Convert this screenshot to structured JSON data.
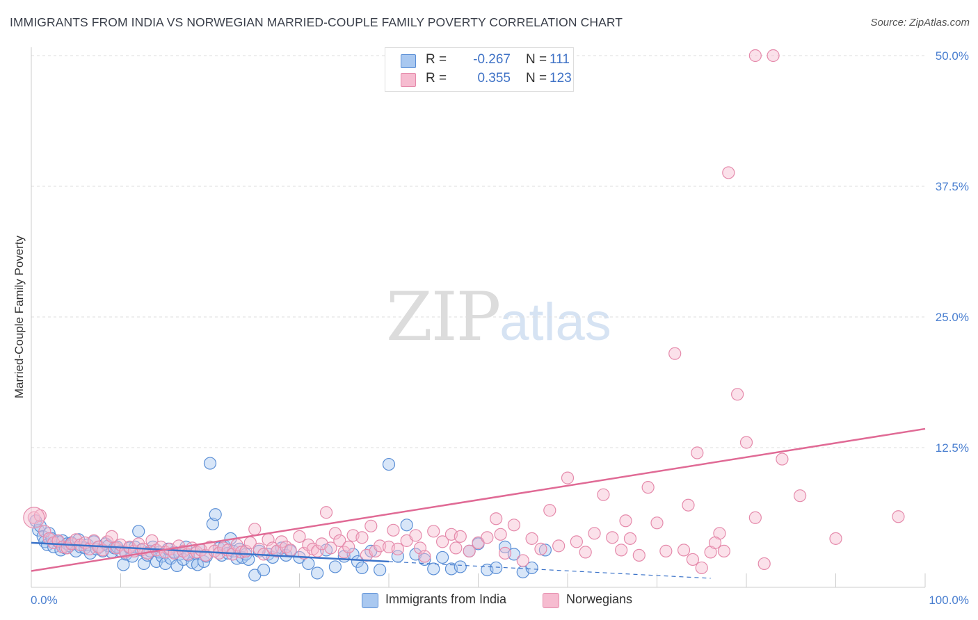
{
  "title": "IMMIGRANTS FROM INDIA VS NORWEGIAN MARRIED-COUPLE FAMILY POVERTY CORRELATION CHART",
  "source": "Source: ZipAtlas.com",
  "watermark": {
    "zip": "ZIP",
    "atlas": "atlas"
  },
  "colors": {
    "blue_fill": "#a9c8f0",
    "blue_stroke": "#5b8fd6",
    "blue_line": "#3b73c9",
    "pink_fill": "#f6bcd0",
    "pink_stroke": "#e58aab",
    "pink_line": "#e06a95",
    "tick_label": "#4a7fd0",
    "grid": "#dddddd"
  },
  "legend": {
    "series1": {
      "r_label": "R =",
      "r_value": "-0.267",
      "n_label": "N =",
      "n_value": "111"
    },
    "series2": {
      "r_label": "R =",
      "r_value": "0.355",
      "n_label": "N =",
      "n_value": "123"
    }
  },
  "chart_data": {
    "type": "scatter",
    "title": "IMMIGRANTS FROM INDIA VS NORWEGIAN MARRIED-COUPLE FAMILY POVERTY CORRELATION CHART",
    "xlabel": "",
    "ylabel": "Married-Couple Family Poverty",
    "xlim": [
      0,
      100
    ],
    "ylim": [
      0,
      50
    ],
    "x_tick_labels": [
      "0.0%",
      "100.0%"
    ],
    "y_ticks": [
      12.5,
      25.0,
      37.5,
      50.0
    ],
    "y_tick_labels": [
      "12.5%",
      "25.0%",
      "37.5%",
      "50.0%"
    ],
    "grid": true,
    "legend_position": "bottom",
    "series": [
      {
        "name": "Immigrants from India",
        "trend": {
          "x0": 0,
          "y0": 3.4,
          "x1": 40,
          "y1": 1.6,
          "dashed_to_x": 76,
          "dashed_to_y": 0
        },
        "points": [
          [
            0.5,
            5.5
          ],
          [
            0.8,
            4.6
          ],
          [
            1.0,
            5.0
          ],
          [
            1.3,
            4.0
          ],
          [
            1.5,
            3.5
          ],
          [
            1.8,
            3.2
          ],
          [
            2.0,
            4.3
          ],
          [
            2.3,
            3.8
          ],
          [
            2.5,
            3.0
          ],
          [
            3.0,
            3.5
          ],
          [
            3.3,
            2.7
          ],
          [
            3.5,
            3.6
          ],
          [
            3.8,
            2.9
          ],
          [
            4.0,
            3.3
          ],
          [
            4.3,
            3.1
          ],
          [
            4.5,
            3.4
          ],
          [
            5.0,
            2.6
          ],
          [
            5.3,
            3.7
          ],
          [
            5.5,
            3.0
          ],
          [
            6.0,
            2.9
          ],
          [
            6.3,
            3.2
          ],
          [
            6.6,
            2.4
          ],
          [
            7.0,
            3.5
          ],
          [
            7.3,
            2.8
          ],
          [
            7.6,
            3.0
          ],
          [
            8.0,
            2.6
          ],
          [
            8.3,
            3.3
          ],
          [
            8.6,
            3.1
          ],
          [
            9.0,
            2.5
          ],
          [
            9.3,
            2.9
          ],
          [
            9.6,
            3.0
          ],
          [
            10.0,
            2.6
          ],
          [
            10.3,
            1.3
          ],
          [
            10.6,
            2.3
          ],
          [
            11.0,
            2.9
          ],
          [
            11.3,
            2.1
          ],
          [
            11.6,
            3.0
          ],
          [
            12.0,
            4.5
          ],
          [
            12.3,
            2.7
          ],
          [
            12.6,
            1.4
          ],
          [
            13.0,
            2.2
          ],
          [
            13.3,
            2.6
          ],
          [
            13.6,
            3.0
          ],
          [
            14.0,
            1.6
          ],
          [
            14.3,
            2.5
          ],
          [
            14.6,
            2.1
          ],
          [
            15.0,
            1.4
          ],
          [
            15.3,
            2.8
          ],
          [
            15.6,
            1.9
          ],
          [
            16.0,
            2.5
          ],
          [
            16.3,
            1.2
          ],
          [
            16.6,
            2.3
          ],
          [
            17.0,
            1.8
          ],
          [
            17.3,
            3.0
          ],
          [
            17.6,
            2.2
          ],
          [
            18.0,
            1.5
          ],
          [
            18.3,
            2.4
          ],
          [
            18.6,
            1.3
          ],
          [
            19.0,
            2.7
          ],
          [
            19.3,
            1.6
          ],
          [
            19.6,
            2.1
          ],
          [
            20.0,
            11.0
          ],
          [
            20.3,
            5.2
          ],
          [
            20.6,
            6.1
          ],
          [
            21.0,
            2.9
          ],
          [
            21.3,
            2.2
          ],
          [
            21.6,
            3.1
          ],
          [
            22.0,
            2.4
          ],
          [
            22.3,
            3.8
          ],
          [
            22.6,
            2.6
          ],
          [
            23.0,
            1.9
          ],
          [
            23.3,
            2.8
          ],
          [
            23.6,
            2.0
          ],
          [
            24.0,
            2.3
          ],
          [
            24.3,
            1.8
          ],
          [
            25.0,
            0.3
          ],
          [
            25.5,
            2.6
          ],
          [
            26.0,
            0.8
          ],
          [
            26.5,
            2.3
          ],
          [
            27.0,
            2.0
          ],
          [
            27.5,
            2.6
          ],
          [
            28.0,
            2.9
          ],
          [
            28.5,
            2.2
          ],
          [
            29.0,
            2.6
          ],
          [
            30.0,
            2.0
          ],
          [
            31.0,
            1.4
          ],
          [
            32.0,
            0.5
          ],
          [
            33.0,
            2.7
          ],
          [
            34.0,
            1.1
          ],
          [
            35.0,
            2.1
          ],
          [
            36.0,
            2.3
          ],
          [
            36.5,
            1.6
          ],
          [
            37.0,
            1.0
          ],
          [
            38.0,
            2.6
          ],
          [
            39.0,
            0.8
          ],
          [
            40.0,
            10.9
          ],
          [
            41.0,
            2.1
          ],
          [
            42.0,
            5.1
          ],
          [
            43.0,
            2.3
          ],
          [
            44.0,
            1.8
          ],
          [
            45.0,
            0.9
          ],
          [
            46.0,
            2.0
          ],
          [
            47.0,
            0.9
          ],
          [
            48.0,
            1.1
          ],
          [
            49.0,
            2.6
          ],
          [
            50.0,
            3.3
          ],
          [
            51.0,
            0.8
          ],
          [
            52.0,
            1.0
          ],
          [
            53.0,
            3.0
          ],
          [
            54.0,
            2.3
          ],
          [
            55.0,
            0.6
          ],
          [
            56.0,
            1.0
          ],
          [
            57.5,
            2.7
          ]
        ]
      },
      {
        "name": "Norwegians",
        "trend": {
          "x0": 0,
          "y0": 0.7,
          "x1": 100,
          "y1": 14.3
        },
        "points": [
          [
            0.3,
            5.8
          ],
          [
            1.0,
            6.0
          ],
          [
            1.5,
            4.5
          ],
          [
            2.0,
            3.8
          ],
          [
            2.5,
            3.4
          ],
          [
            3.0,
            3.6
          ],
          [
            3.5,
            3.0
          ],
          [
            4.0,
            2.9
          ],
          [
            4.5,
            3.3
          ],
          [
            5.0,
            3.7
          ],
          [
            5.5,
            3.2
          ],
          [
            6.0,
            3.4
          ],
          [
            6.5,
            2.8
          ],
          [
            7.0,
            3.6
          ],
          [
            7.5,
            3.0
          ],
          [
            8.0,
            2.7
          ],
          [
            8.5,
            3.5
          ],
          [
            9.0,
            4.0
          ],
          [
            9.5,
            2.9
          ],
          [
            10.0,
            3.2
          ],
          [
            10.5,
            2.5
          ],
          [
            11.0,
            3.0
          ],
          [
            11.5,
            2.6
          ],
          [
            12.0,
            3.3
          ],
          [
            12.5,
            2.8
          ],
          [
            13.0,
            2.4
          ],
          [
            13.5,
            3.6
          ],
          [
            14.0,
            2.7
          ],
          [
            14.5,
            3.0
          ],
          [
            15.0,
            2.5
          ],
          [
            15.5,
            2.8
          ],
          [
            16.0,
            2.4
          ],
          [
            16.5,
            3.1
          ],
          [
            17.0,
            2.6
          ],
          [
            17.5,
            2.3
          ],
          [
            18.0,
            2.9
          ],
          [
            18.5,
            2.5
          ],
          [
            19.0,
            2.7
          ],
          [
            19.5,
            2.2
          ],
          [
            20.0,
            3.0
          ],
          [
            20.5,
            2.6
          ],
          [
            21.0,
            2.4
          ],
          [
            21.5,
            2.9
          ],
          [
            22.0,
            2.7
          ],
          [
            22.5,
            2.3
          ],
          [
            23.0,
            3.2
          ],
          [
            23.5,
            2.5
          ],
          [
            24.0,
            2.6
          ],
          [
            24.5,
            3.4
          ],
          [
            25.0,
            4.7
          ],
          [
            25.5,
            2.8
          ],
          [
            26.0,
            2.3
          ],
          [
            26.5,
            3.7
          ],
          [
            27.0,
            2.9
          ],
          [
            27.5,
            2.6
          ],
          [
            28.0,
            3.5
          ],
          [
            28.5,
            3.0
          ],
          [
            29.0,
            2.7
          ],
          [
            30.0,
            4.0
          ],
          [
            30.5,
            2.4
          ],
          [
            31.0,
            3.2
          ],
          [
            31.5,
            2.8
          ],
          [
            32.0,
            2.6
          ],
          [
            32.5,
            3.3
          ],
          [
            33.0,
            6.3
          ],
          [
            33.5,
            2.9
          ],
          [
            34.0,
            4.3
          ],
          [
            34.5,
            3.6
          ],
          [
            35.0,
            2.5
          ],
          [
            35.5,
            3.0
          ],
          [
            36.0,
            4.1
          ],
          [
            37.0,
            3.9
          ],
          [
            37.5,
            2.2
          ],
          [
            38.0,
            5.0
          ],
          [
            38.5,
            2.6
          ],
          [
            39.0,
            3.1
          ],
          [
            40.0,
            3.0
          ],
          [
            40.5,
            4.6
          ],
          [
            41.0,
            2.8
          ],
          [
            42.0,
            3.6
          ],
          [
            43.0,
            4.1
          ],
          [
            43.5,
            2.9
          ],
          [
            44.0,
            2.1
          ],
          [
            45.0,
            4.5
          ],
          [
            46.0,
            3.5
          ],
          [
            47.0,
            4.2
          ],
          [
            47.5,
            2.9
          ],
          [
            48.0,
            4.0
          ],
          [
            49.0,
            2.6
          ],
          [
            50.0,
            3.4
          ],
          [
            51.0,
            3.9
          ],
          [
            52.0,
            5.7
          ],
          [
            52.5,
            4.2
          ],
          [
            53.0,
            2.4
          ],
          [
            54.0,
            5.1
          ],
          [
            55.0,
            1.7
          ],
          [
            56.0,
            3.8
          ],
          [
            57.0,
            2.8
          ],
          [
            58.0,
            6.5
          ],
          [
            59.0,
            3.1
          ],
          [
            60.0,
            9.6
          ],
          [
            61.0,
            3.5
          ],
          [
            62.0,
            2.5
          ],
          [
            63.0,
            4.3
          ],
          [
            64.0,
            8.0
          ],
          [
            65.0,
            3.9
          ],
          [
            66.0,
            2.7
          ],
          [
            66.5,
            5.5
          ],
          [
            67.0,
            3.8
          ],
          [
            68.0,
            2.2
          ],
          [
            69.0,
            8.7
          ],
          [
            70.0,
            5.3
          ],
          [
            71.0,
            2.6
          ],
          [
            72.0,
            21.5
          ],
          [
            73.0,
            2.7
          ],
          [
            73.5,
            7.0
          ],
          [
            74.0,
            1.8
          ],
          [
            75.0,
            1.0
          ],
          [
            76.0,
            2.5
          ],
          [
            77.0,
            4.3
          ],
          [
            77.5,
            2.6
          ],
          [
            78.0,
            38.8
          ],
          [
            79.0,
            17.6
          ],
          [
            80.0,
            13.0
          ],
          [
            81.0,
            5.8
          ],
          [
            82.0,
            1.4
          ],
          [
            84.0,
            11.4
          ],
          [
            86.0,
            7.9
          ],
          [
            90.0,
            3.8
          ],
          [
            97.0,
            5.9
          ],
          [
            74.5,
            12.0
          ],
          [
            76.5,
            3.4
          ]
        ],
        "outliers_top": [
          [
            81.0,
            50.0
          ],
          [
            83.0,
            50.0
          ]
        ]
      }
    ]
  },
  "bottom_legend": {
    "item1": "Immigrants from India",
    "item2": "Norwegians"
  }
}
